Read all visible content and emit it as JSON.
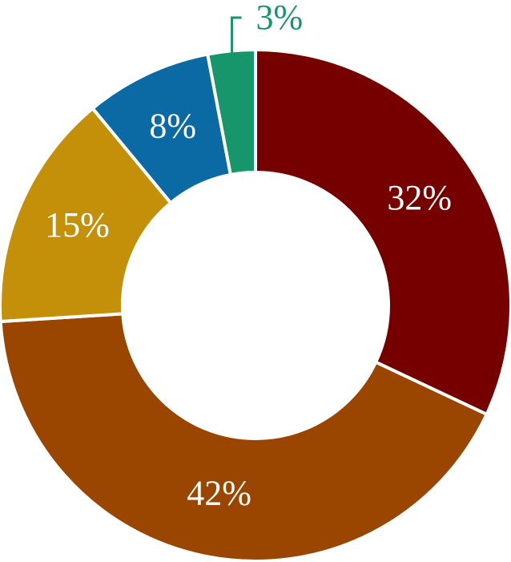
{
  "chart_data": {
    "type": "donut",
    "categories": [
      null,
      null,
      null,
      null,
      null
    ],
    "values": [
      32,
      42,
      15,
      8,
      3
    ],
    "value_labels": [
      "32%",
      "42%",
      "15%",
      "8%",
      "3%"
    ],
    "colors": [
      "#760000",
      "#9a4600",
      "#c4900a",
      "#0b6aa3",
      "#16966a"
    ]
  }
}
